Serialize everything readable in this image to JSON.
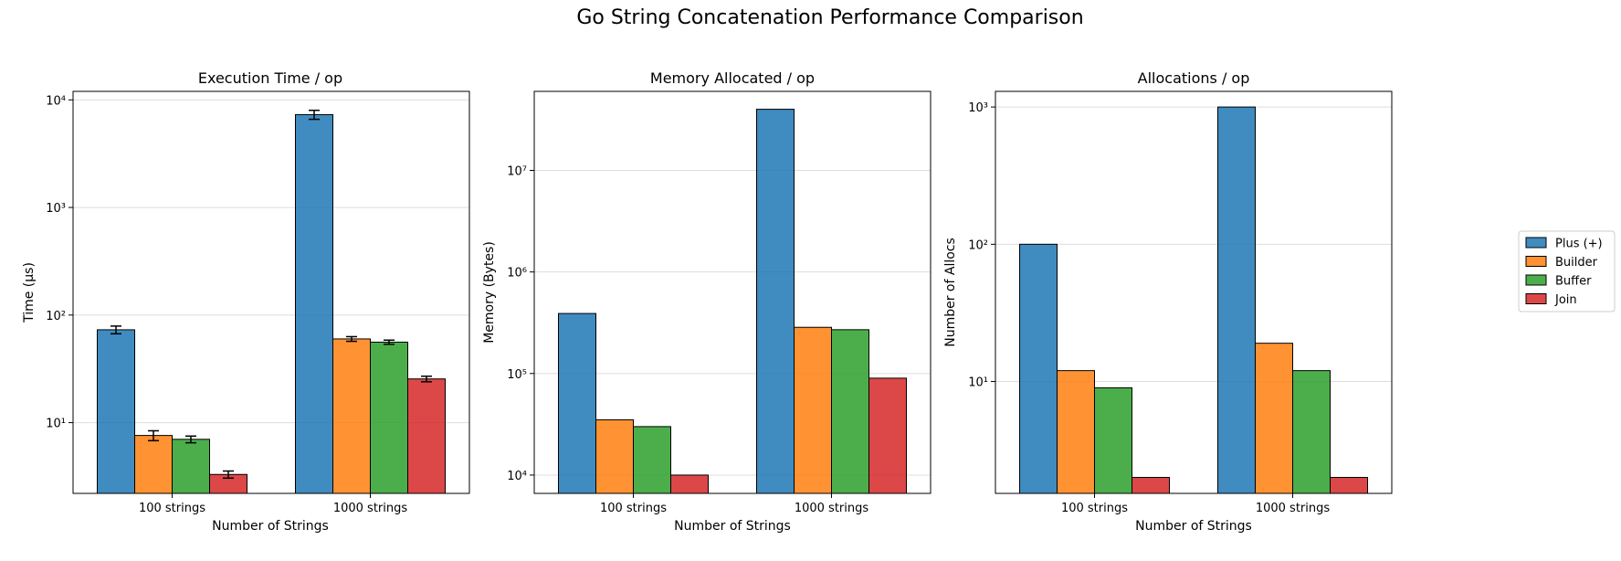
{
  "figure": {
    "title": "Go String Concatenation Performance Comparison"
  },
  "colors": {
    "Plus (+)": "#1f77b4",
    "Builder": "#ff7f0e",
    "Buffer": "#2ca02c",
    "Join": "#d62728"
  },
  "legend": {
    "placement": "right",
    "entries": [
      "Plus (+)",
      "Builder",
      "Buffer",
      "Join"
    ]
  },
  "chart_data": [
    {
      "type": "bar",
      "title": "Execution Time / op",
      "xlabel": "Number of Strings",
      "ylabel": "Time (µs)",
      "yscale": "log",
      "ylim": [
        2.2,
        12000
      ],
      "grid": "y",
      "categories": [
        "100 strings",
        "1000 strings"
      ],
      "yticks": [
        10,
        100,
        1000,
        10000
      ],
      "series": [
        {
          "name": "Plus (+)",
          "values": [
            73,
            7300
          ],
          "errors": [
            6,
            700
          ]
        },
        {
          "name": "Builder",
          "values": [
            7.6,
            60
          ],
          "errors": [
            0.8,
            3
          ]
        },
        {
          "name": "Buffer",
          "values": [
            7.0,
            56
          ],
          "errors": [
            0.5,
            2.5
          ]
        },
        {
          "name": "Join",
          "values": [
            3.3,
            25.5
          ],
          "errors": [
            0.25,
            1.5
          ]
        }
      ]
    },
    {
      "type": "bar",
      "title": "Memory Allocated / op",
      "xlabel": "Number of Strings",
      "ylabel": "Memory (Bytes)",
      "yscale": "log",
      "ylim": [
        6600,
        60000000
      ],
      "grid": "y",
      "categories": [
        "100 strings",
        "1000 strings"
      ],
      "yticks": [
        10000,
        100000,
        1000000,
        10000000
      ],
      "series": [
        {
          "name": "Plus (+)",
          "values": [
            390000,
            40000000
          ]
        },
        {
          "name": "Builder",
          "values": [
            35000,
            285000
          ]
        },
        {
          "name": "Buffer",
          "values": [
            30000,
            270000
          ]
        },
        {
          "name": "Join",
          "values": [
            10000,
            90000
          ]
        }
      ]
    },
    {
      "type": "bar",
      "title": "Allocations / op",
      "xlabel": "Number of Strings",
      "ylabel": "Number of Allocs",
      "yscale": "log",
      "ylim": [
        1.53,
        1300
      ],
      "grid": "y",
      "categories": [
        "100 strings",
        "1000 strings"
      ],
      "yticks": [
        10,
        100,
        1000
      ],
      "series": [
        {
          "name": "Plus (+)",
          "values": [
            100,
            1000
          ]
        },
        {
          "name": "Builder",
          "values": [
            12,
            19
          ]
        },
        {
          "name": "Buffer",
          "values": [
            9,
            12
          ]
        },
        {
          "name": "Join",
          "values": [
            2,
            2
          ]
        }
      ]
    }
  ]
}
